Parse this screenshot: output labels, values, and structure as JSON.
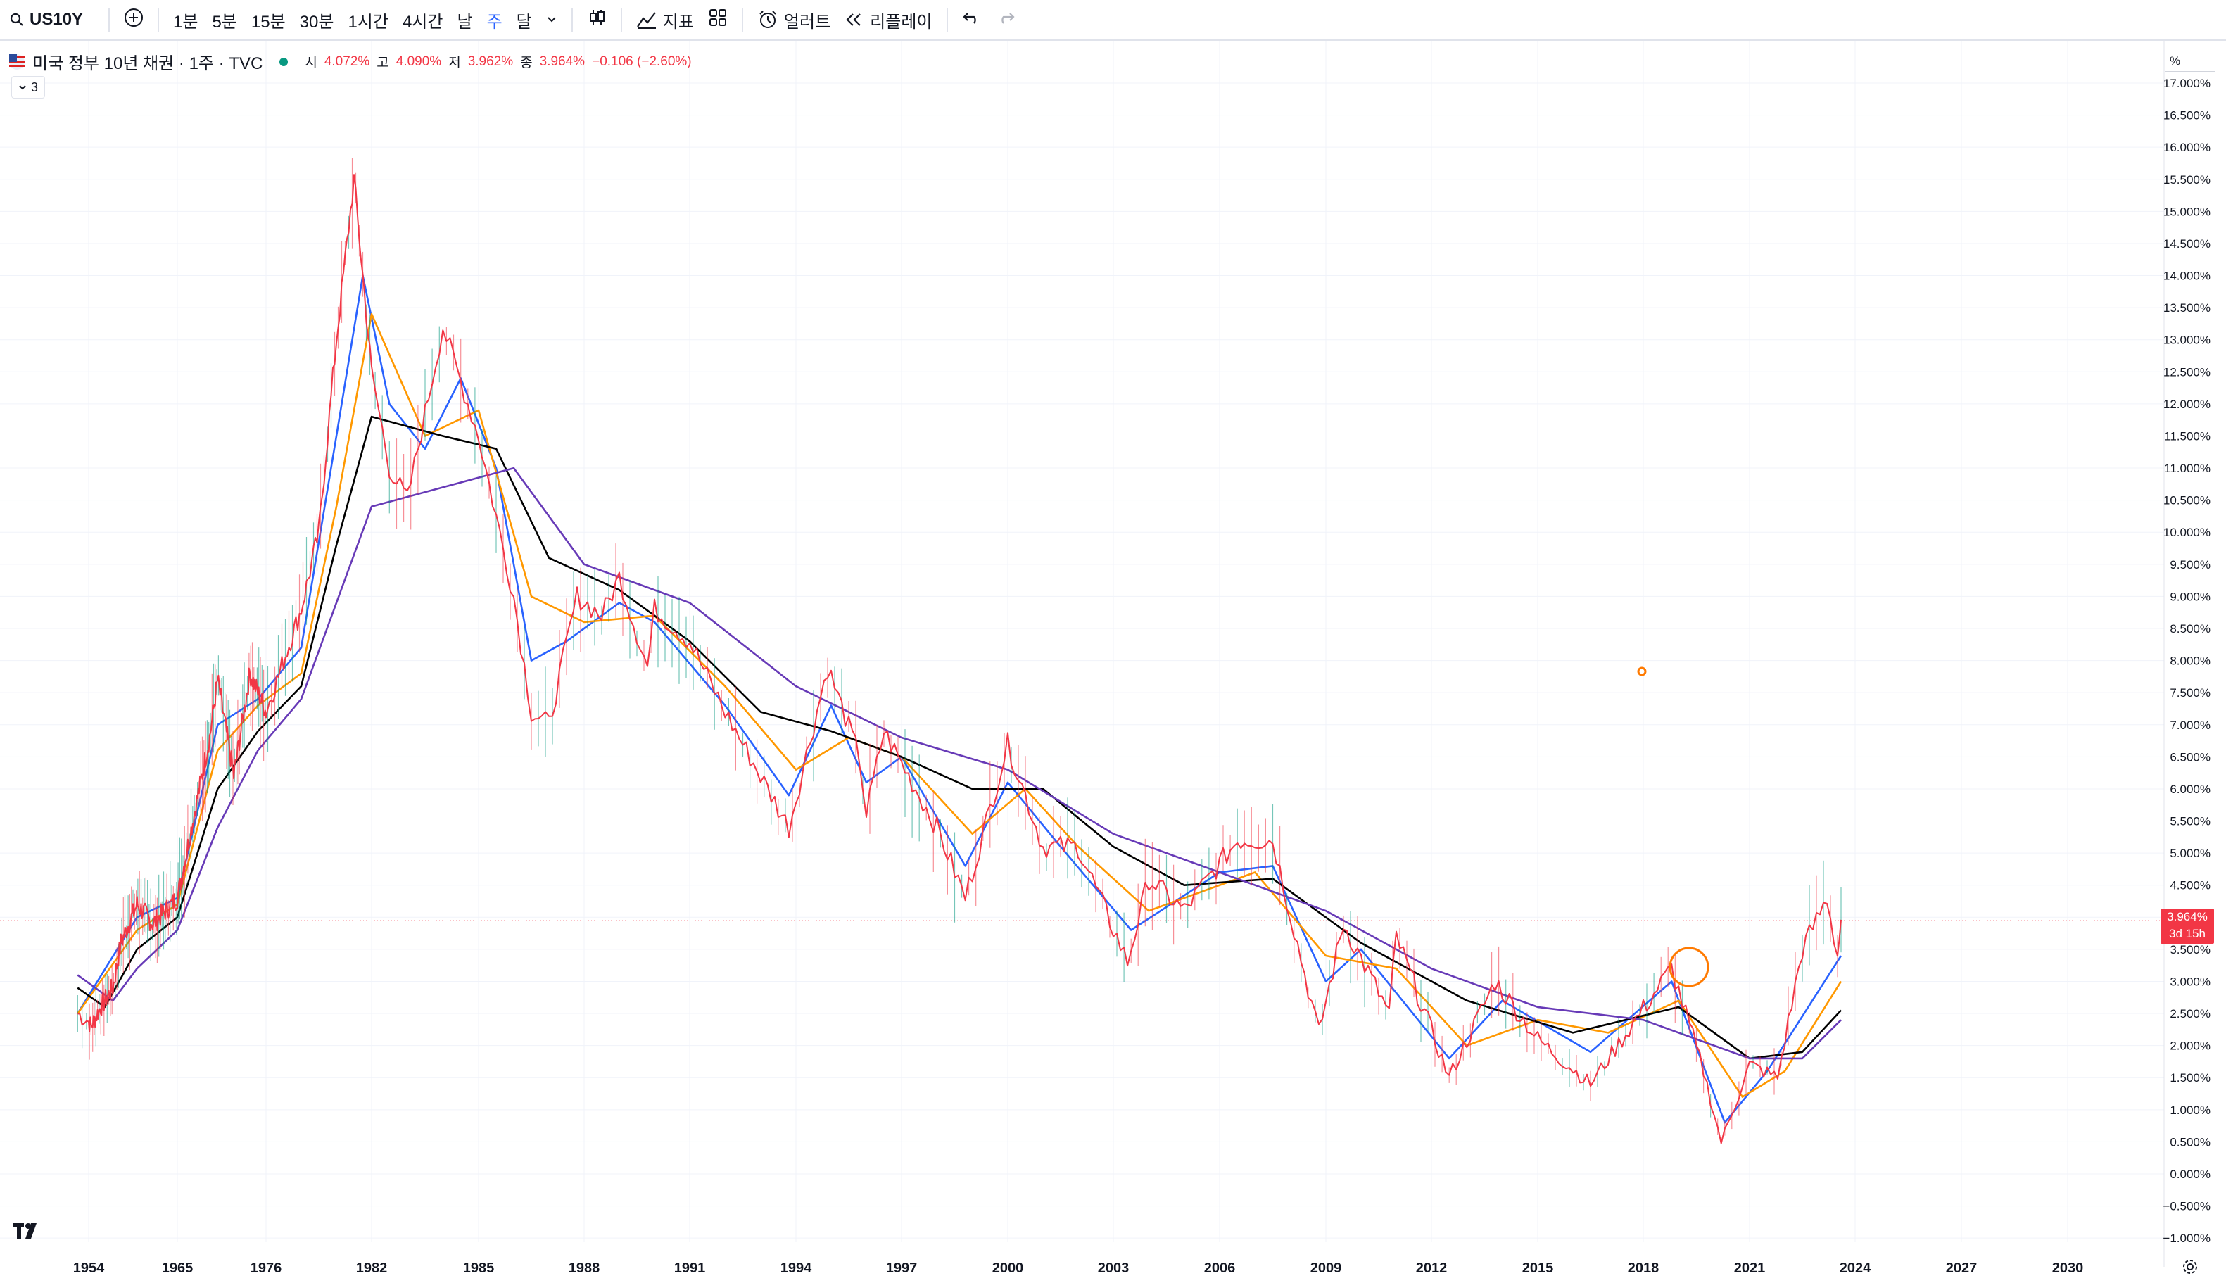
{
  "toolbar": {
    "symbol": "US10Y",
    "intervals": [
      "1분",
      "5분",
      "15분",
      "30분",
      "1시간",
      "4시간",
      "날",
      "주",
      "달"
    ],
    "active_interval": "주",
    "indicators_label": "지표",
    "alerts_label": "얼러트",
    "replay_label": "리플레이"
  },
  "legend": {
    "title": "미국 정부 10년 채권 · 1주 · TVC",
    "open_label": "시",
    "open": "4.072%",
    "high_label": "고",
    "high": "4.090%",
    "low_label": "저",
    "low": "3.962%",
    "close_label": "종",
    "close": "3.964%",
    "change": "−0.106 (−2.60%)",
    "collapsed_count": "3"
  },
  "price_scale": {
    "unit": "%",
    "ticks": [
      "17.000%",
      "16.500%",
      "16.000%",
      "15.500%",
      "15.000%",
      "14.500%",
      "14.000%",
      "13.500%",
      "13.000%",
      "12.500%",
      "12.000%",
      "11.500%",
      "11.000%",
      "10.500%",
      "10.000%",
      "9.500%",
      "9.000%",
      "8.500%",
      "8.000%",
      "7.500%",
      "7.000%",
      "6.500%",
      "6.000%",
      "5.500%",
      "5.000%",
      "4.500%",
      "4.000%",
      "3.500%",
      "3.000%",
      "2.500%",
      "2.000%",
      "1.500%",
      "1.000%",
      "0.500%",
      "0.000%",
      "−0.500%",
      "−1.000%"
    ],
    "last_price": "3.964%",
    "countdown": "3d 15h"
  },
  "time_scale": {
    "ticks": [
      "1954",
      "1965",
      "1976",
      "1982",
      "1985",
      "1988",
      "1991",
      "1994",
      "1997",
      "2000",
      "2003",
      "2006",
      "2009",
      "2012",
      "2015",
      "2018",
      "2021",
      "2024",
      "2027",
      "2030"
    ]
  },
  "colors": {
    "price_line": "#f23645",
    "ma_blue": "#2962ff",
    "ma_orange": "#ff9800",
    "ma_black": "#000000",
    "ma_purple": "#673ab7",
    "up": "#089981",
    "down": "#f23645"
  },
  "chart_data": {
    "type": "line",
    "title": "미국 정부 10년 채권 · 1주 · TVC",
    "xlabel": "",
    "ylabel": "",
    "ylim": [
      -1.0,
      17.0
    ],
    "price": [
      [
        1953.5,
        2.5
      ],
      [
        1954.3,
        2.3
      ],
      [
        1955.5,
        2.6
      ],
      [
        1957,
        2.9
      ],
      [
        1958,
        3.6
      ],
      [
        1960,
        4.2
      ],
      [
        1962,
        3.9
      ],
      [
        1965,
        4.3
      ],
      [
        1969,
        6.8
      ],
      [
        1970,
        7.7
      ],
      [
        1972,
        6.2
      ],
      [
        1974,
        7.8
      ],
      [
        1976,
        7.2
      ],
      [
        1978,
        8.8
      ],
      [
        1979,
        10.0
      ],
      [
        1980,
        13.0
      ],
      [
        1981,
        15.5
      ],
      [
        1981.5,
        14.0
      ],
      [
        1982.5,
        11.0
      ],
      [
        1983,
        10.5
      ],
      [
        1984,
        13.2
      ],
      [
        1985,
        11.5
      ],
      [
        1986,
        9.0
      ],
      [
        1986.5,
        7.2
      ],
      [
        1987,
        7.0
      ],
      [
        1987.8,
        9.0
      ],
      [
        1988.5,
        8.7
      ],
      [
        1989,
        9.3
      ],
      [
        1989.8,
        7.9
      ],
      [
        1990,
        8.8
      ],
      [
        1991,
        8.3
      ],
      [
        1992,
        7.2
      ],
      [
        1993.8,
        5.4
      ],
      [
        1994.9,
        7.9
      ],
      [
        1995.8,
        6.5
      ],
      [
        1996,
        5.6
      ],
      [
        1996.5,
        6.9
      ],
      [
        1997,
        6.4
      ],
      [
        1998,
        5.4
      ],
      [
        1998.8,
        4.3
      ],
      [
        2000,
        6.7
      ],
      [
        2001,
        5.1
      ],
      [
        2002,
        5.1
      ],
      [
        2003.4,
        3.3
      ],
      [
        2004,
        4.6
      ],
      [
        2005,
        4.1
      ],
      [
        2006.5,
        5.2
      ],
      [
        2007.5,
        5.2
      ],
      [
        2008.8,
        2.2
      ],
      [
        2009.5,
        3.9
      ],
      [
        2010.8,
        2.5
      ],
      [
        2011,
        3.7
      ],
      [
        2012.5,
        1.5
      ],
      [
        2013.8,
        3.0
      ],
      [
        2015,
        2.1
      ],
      [
        2016.5,
        1.4
      ],
      [
        2018.8,
        3.2
      ],
      [
        2019.7,
        1.6
      ],
      [
        2020.2,
        0.5
      ],
      [
        2021,
        1.7
      ],
      [
        2021.8,
        1.5
      ],
      [
        2022.5,
        3.5
      ],
      [
        2023.2,
        4.3
      ],
      [
        2023.5,
        3.4
      ],
      [
        2023.6,
        3.96
      ]
    ],
    "series": [
      {
        "name": "",
        "color": "#2962ff",
        "values": [
          [
            1953.5,
            2.5
          ],
          [
            1960,
            4.0
          ],
          [
            1965,
            4.3
          ],
          [
            1970,
            7.0
          ],
          [
            1975,
            7.4
          ],
          [
            1978,
            8.2
          ],
          [
            1980,
            11.5
          ],
          [
            1981.5,
            14.0
          ],
          [
            1982.5,
            12.0
          ],
          [
            1983.5,
            11.3
          ],
          [
            1984.5,
            12.4
          ],
          [
            1985.5,
            11.0
          ],
          [
            1986.5,
            8.0
          ],
          [
            1987.5,
            8.3
          ],
          [
            1989,
            8.9
          ],
          [
            1990,
            8.6
          ],
          [
            1992,
            7.3
          ],
          [
            1993.8,
            5.9
          ],
          [
            1995,
            7.3
          ],
          [
            1996,
            6.1
          ],
          [
            1997,
            6.5
          ],
          [
            1998.8,
            4.8
          ],
          [
            2000,
            6.1
          ],
          [
            2001.5,
            5.1
          ],
          [
            2003.5,
            3.8
          ],
          [
            2006,
            4.7
          ],
          [
            2007.5,
            4.8
          ],
          [
            2009,
            3.0
          ],
          [
            2010,
            3.5
          ],
          [
            2012.5,
            1.8
          ],
          [
            2014,
            2.7
          ],
          [
            2016.5,
            1.9
          ],
          [
            2018.8,
            3.0
          ],
          [
            2020.3,
            0.8
          ],
          [
            2021.5,
            1.6
          ],
          [
            2023.6,
            3.4
          ]
        ]
      },
      {
        "name": "",
        "color": "#ff9800",
        "values": [
          [
            1953.5,
            2.5
          ],
          [
            1960,
            3.8
          ],
          [
            1965,
            4.2
          ],
          [
            1970,
            6.6
          ],
          [
            1975,
            7.3
          ],
          [
            1978,
            7.8
          ],
          [
            1980,
            10.4
          ],
          [
            1982,
            13.4
          ],
          [
            1983.5,
            11.5
          ],
          [
            1985,
            11.9
          ],
          [
            1986.5,
            9.0
          ],
          [
            1988,
            8.6
          ],
          [
            1990,
            8.7
          ],
          [
            1992,
            7.6
          ],
          [
            1994,
            6.3
          ],
          [
            1995.5,
            6.8
          ],
          [
            1997,
            6.5
          ],
          [
            1999,
            5.3
          ],
          [
            2000.5,
            6.0
          ],
          [
            2002,
            5.1
          ],
          [
            2004,
            4.1
          ],
          [
            2007,
            4.7
          ],
          [
            2009,
            3.4
          ],
          [
            2011,
            3.2
          ],
          [
            2013,
            2.0
          ],
          [
            2015,
            2.4
          ],
          [
            2017,
            2.2
          ],
          [
            2019,
            2.7
          ],
          [
            2020.8,
            1.2
          ],
          [
            2022,
            1.6
          ],
          [
            2023.6,
            3.0
          ]
        ]
      },
      {
        "name": "",
        "color": "#000000",
        "values": [
          [
            1953.5,
            2.9
          ],
          [
            1956,
            2.6
          ],
          [
            1960,
            3.5
          ],
          [
            1965,
            4.0
          ],
          [
            1970,
            6.0
          ],
          [
            1975,
            6.9
          ],
          [
            1978,
            7.6
          ],
          [
            1980,
            9.8
          ],
          [
            1982,
            11.8
          ],
          [
            1984,
            11.5
          ],
          [
            1985.5,
            11.3
          ],
          [
            1987,
            9.6
          ],
          [
            1989,
            9.1
          ],
          [
            1991,
            8.3
          ],
          [
            1993,
            7.2
          ],
          [
            1995,
            6.9
          ],
          [
            1997,
            6.5
          ],
          [
            1999,
            6.0
          ],
          [
            2001,
            6.0
          ],
          [
            2003,
            5.1
          ],
          [
            2005,
            4.5
          ],
          [
            2007.5,
            4.6
          ],
          [
            2010,
            3.6
          ],
          [
            2013,
            2.7
          ],
          [
            2016,
            2.2
          ],
          [
            2019,
            2.6
          ],
          [
            2021,
            1.8
          ],
          [
            2022.5,
            1.9
          ],
          [
            2023.6,
            2.55
          ]
        ]
      },
      {
        "name": "",
        "color": "#673ab7",
        "values": [
          [
            1953.5,
            3.1
          ],
          [
            1957,
            2.7
          ],
          [
            1960,
            3.2
          ],
          [
            1965,
            3.8
          ],
          [
            1970,
            5.4
          ],
          [
            1975,
            6.6
          ],
          [
            1978,
            7.4
          ],
          [
            1980,
            8.9
          ],
          [
            1982,
            10.4
          ],
          [
            1984,
            10.7
          ],
          [
            1986,
            11.0
          ],
          [
            1988,
            9.5
          ],
          [
            1991,
            8.9
          ],
          [
            1994,
            7.6
          ],
          [
            1997,
            6.8
          ],
          [
            2000,
            6.3
          ],
          [
            2003,
            5.3
          ],
          [
            2006,
            4.7
          ],
          [
            2009,
            4.1
          ],
          [
            2012,
            3.2
          ],
          [
            2015,
            2.6
          ],
          [
            2018,
            2.4
          ],
          [
            2021,
            1.8
          ],
          [
            2022.5,
            1.8
          ],
          [
            2023.6,
            2.4
          ]
        ]
      }
    ]
  }
}
